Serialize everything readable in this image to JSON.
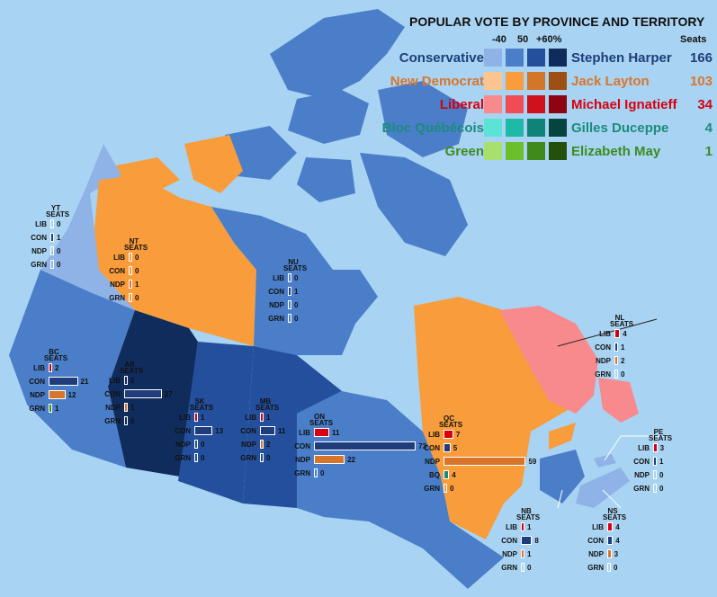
{
  "legend": {
    "title": "POPULAR VOTE BY PROVINCE AND TERRITORY",
    "scale_labels": [
      "-40",
      "50",
      "+60%"
    ],
    "seats_header": "Seats",
    "parties": [
      {
        "name": "Conservative",
        "leader": "Stephen Harper",
        "seats": "166",
        "color": "#1f3d7a",
        "shades": [
          "#8fb3e6",
          "#4a7ec9",
          "#244f9c",
          "#102c5c"
        ]
      },
      {
        "name": "New Democrat",
        "leader": "Jack Layton",
        "seats": "103",
        "color": "#d9752b",
        "shades": [
          "#fcc490",
          "#f89c3c",
          "#d37628",
          "#9e4f13"
        ]
      },
      {
        "name": "Liberal",
        "leader": "Michael Ignatieff",
        "seats": "34",
        "color": "#d7000f",
        "shades": [
          "#f88a8d",
          "#f14b56",
          "#d0101c",
          "#8c0510"
        ]
      },
      {
        "name": "Bloc Québécois",
        "leader": "Gilles Duceppe",
        "seats": "4",
        "color": "#1a8c7c",
        "shades": [
          "#5be3d5",
          "#1fb9a7",
          "#0f8375",
          "#06453e"
        ]
      },
      {
        "name": "Green",
        "leader": "Elizabeth May",
        "seats": "1",
        "color": "#3d8b1f",
        "shades": [
          "#a8e06e",
          "#6bbf2b",
          "#3f8a1b",
          "#23500d"
        ]
      }
    ]
  },
  "regions": {
    "YT": {
      "color": "#8fb3e6",
      "header": [
        "YT",
        "SEATS"
      ],
      "rows": [
        {
          "party": "LIB",
          "seats": "0"
        },
        {
          "party": "CON",
          "seats": "1"
        },
        {
          "party": "NDP",
          "seats": "0"
        },
        {
          "party": "GRN",
          "seats": "0"
        }
      ]
    },
    "NT": {
      "color": "#f89c3c",
      "header": [
        "NT",
        "SEATS"
      ],
      "rows": [
        {
          "party": "LIB",
          "seats": "0"
        },
        {
          "party": "CON",
          "seats": "0"
        },
        {
          "party": "NDP",
          "seats": "1"
        },
        {
          "party": "GRN",
          "seats": "0"
        }
      ]
    },
    "NU": {
      "color": "#4a7ec9",
      "header": [
        "NU",
        "SEATS"
      ],
      "rows": [
        {
          "party": "LIB",
          "seats": "0"
        },
        {
          "party": "CON",
          "seats": "1"
        },
        {
          "party": "NDP",
          "seats": "0"
        },
        {
          "party": "GRN",
          "seats": "0"
        }
      ]
    },
    "BC": {
      "color": "#4a7ec9",
      "header": [
        "BC",
        "SEATS"
      ],
      "rows": [
        {
          "party": "LIB",
          "seats": "2"
        },
        {
          "party": "CON",
          "seats": "21"
        },
        {
          "party": "NDP",
          "seats": "12"
        },
        {
          "party": "GRN",
          "seats": "1"
        }
      ]
    },
    "AB": {
      "color": "#102c5c",
      "header": [
        "AB",
        "SEATS"
      ],
      "rows": [
        {
          "party": "LIB",
          "seats": "0"
        },
        {
          "party": "CON",
          "seats": "27"
        },
        {
          "party": "NDP",
          "seats": "1"
        },
        {
          "party": "GRN",
          "seats": "0"
        }
      ]
    },
    "SK": {
      "color": "#244f9c",
      "header": [
        "SK",
        "SEATS"
      ],
      "rows": [
        {
          "party": "LIB",
          "seats": "1"
        },
        {
          "party": "CON",
          "seats": "13"
        },
        {
          "party": "NDP",
          "seats": "0"
        },
        {
          "party": "GRN",
          "seats": "0"
        }
      ]
    },
    "MB": {
      "color": "#244f9c",
      "header": [
        "MB",
        "SEATS"
      ],
      "rows": [
        {
          "party": "LIB",
          "seats": "1"
        },
        {
          "party": "CON",
          "seats": "11"
        },
        {
          "party": "NDP",
          "seats": "2"
        },
        {
          "party": "GRN",
          "seats": "0"
        }
      ]
    },
    "ON": {
      "color": "#4a7ec9",
      "header": [
        "ON",
        "SEATS"
      ],
      "rows": [
        {
          "party": "LIB",
          "seats": "11"
        },
        {
          "party": "CON",
          "seats": "73"
        },
        {
          "party": "NDP",
          "seats": "22"
        },
        {
          "party": "GRN",
          "seats": "0"
        }
      ]
    },
    "QC": {
      "color": "#f89c3c",
      "header": [
        "QC",
        "SEATS"
      ],
      "rows": [
        {
          "party": "LIB",
          "seats": "7"
        },
        {
          "party": "CON",
          "seats": "5"
        },
        {
          "party": "NDP",
          "seats": "59"
        },
        {
          "party": "BQ",
          "seats": "4"
        },
        {
          "party": "GRN",
          "seats": "0"
        }
      ]
    },
    "NL": {
      "color": "#f88a8d",
      "header": [
        "NL",
        "SEATS"
      ],
      "rows": [
        {
          "party": "LIB",
          "seats": "4"
        },
        {
          "party": "CON",
          "seats": "1"
        },
        {
          "party": "NDP",
          "seats": "2"
        },
        {
          "party": "GRN",
          "seats": "0"
        }
      ]
    },
    "PE": {
      "color": "#8fb3e6",
      "header": [
        "PE",
        "SEATS"
      ],
      "rows": [
        {
          "party": "LIB",
          "seats": "3"
        },
        {
          "party": "CON",
          "seats": "1"
        },
        {
          "party": "NDP",
          "seats": "0"
        },
        {
          "party": "GRN",
          "seats": "0"
        }
      ]
    },
    "NB": {
      "color": "#4a7ec9",
      "header": [
        "NB",
        "SEATS"
      ],
      "rows": [
        {
          "party": "LIB",
          "seats": "1"
        },
        {
          "party": "CON",
          "seats": "8"
        },
        {
          "party": "NDP",
          "seats": "1"
        },
        {
          "party": "GRN",
          "seats": "0"
        }
      ]
    },
    "NS": {
      "color": "#8fb3e6",
      "header": [
        "NS",
        "SEATS"
      ],
      "rows": [
        {
          "party": "LIB",
          "seats": "4"
        },
        {
          "party": "CON",
          "seats": "4"
        },
        {
          "party": "NDP",
          "seats": "3"
        },
        {
          "party": "GRN",
          "seats": "0"
        }
      ]
    }
  },
  "bar_colors": {
    "LIB": "#d7000f",
    "CON": "#1f3d7a",
    "NDP": "#d9752b",
    "BQ": "#1a8c7c",
    "GRN": "#3d8b1f"
  }
}
